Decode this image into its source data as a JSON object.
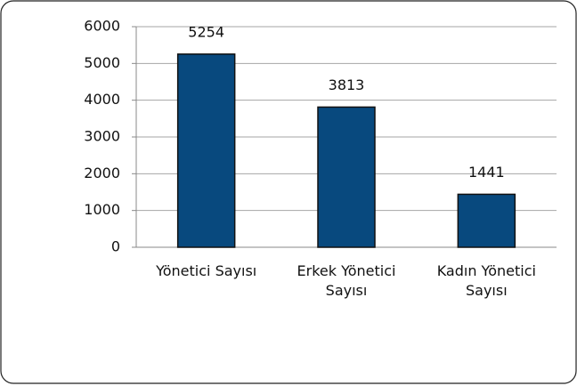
{
  "chart_data": {
    "type": "bar",
    "categories": [
      "Yönetici Sayısı",
      "Erkek Yönetici Sayısı",
      "Kadın Yönetici Sayısı"
    ],
    "values": [
      5254,
      3813,
      1441
    ],
    "color": "#08497e",
    "ylim": [
      0,
      6000
    ],
    "yticks": [
      0,
      1000,
      2000,
      3000,
      4000,
      5000,
      6000
    ],
    "grid": true
  }
}
